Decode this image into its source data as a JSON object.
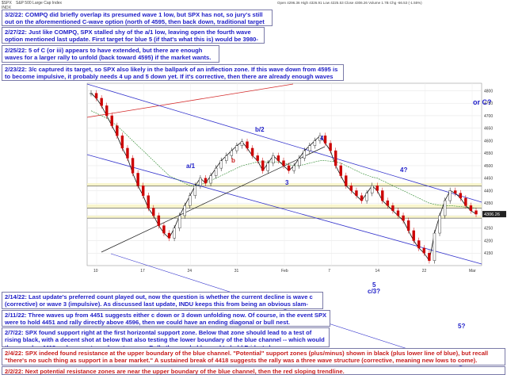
{
  "header": {
    "symbol": "$SPX",
    "name": "S&P 500 Large Cap Index",
    "exchange": "INDX",
    "ohlc": "Open 4296.36  High 4326.91  Low 4225.53  Close 4306.26  Volume 1.7B  Chg -66.53 (-1.55%)"
  },
  "notes": [
    {
      "id": "n1",
      "color": "blue",
      "text": "3/2/22:  COMPQ did briefly overlap its presumed wave 1 low, but SPX has not, so jury's still out on the aforementioned C-wave option (north of 4595, then back down, traditional target = 4717 plus/minus)."
    },
    {
      "id": "n2",
      "color": "blue",
      "text": "2/27/22:  Just like COMPQ, SPX stalled shy of the a/1 low, leaving open the fourth wave option mentioned last update.  First target for blue 5 (if that's what this is) would be 3980-4030.  Bulls need sustained trade over 4461."
    },
    {
      "id": "n3",
      "color": "blue",
      "text": "2/25/22:  5 of C (or iii) appears to have extended, but there are enough waves for a larger rally to unfold (back toward 4595) if the market wants."
    },
    {
      "id": "n4",
      "color": "blue",
      "text": "2/23/22:  3/c captured its target, so SPX also likely in the ballpark of an inflection zone.  If this wave down from 4595 is to become impulsive, it probably needs 4 up and 5 down yet.  If it's corrective, then there are already enough waves for it to bounce back up north of 4595 -- hence the inflection zone."
    },
    {
      "id": "n5",
      "color": "blue",
      "text": "2/14/22:  Last update's preferred count played out, now the question is whether the current decline is wave c (corrective) or wave 3 (impulsive).  As discussed last update, INDU keeps this from being an obvious slam-dunk for bears."
    },
    {
      "id": "n6",
      "color": "blue",
      "text": "2/11/22:  Three waves up from 4451 suggests either c down or 3 down unfolding now.  Of course, in the event SPX were to hold 4451 and rally directly above 4596, then we could have an ending diagonal or bull nest."
    },
    {
      "id": "n7",
      "color": "blue",
      "text": "2/7/22:  SPX found support right at the first horizontal support zone.  Below that zone should lead to a test of rising black, with a decent shot at below that also testing the lower boundary of the blue channel -- which would then overlap 4418 and suggest new lows to come.  Bulls thus probably need to hold Friday's low."
    },
    {
      "id": "n8",
      "color": "red",
      "text": "2/4/22:  SPX indeed found resistance at the upper boundary of the blue channel.  \"Potential\" support zones (plus/minus) shown in black (plus lower line of blue), but recall \"there's no such thing as support in a bear market.\"  A sustained break of 4418 suggests the rally was a three wave structure (corrective, meaning new lows to come)."
    },
    {
      "id": "n9",
      "color": "red",
      "text": "2/2/22:  Next potential resistance zones are near the upper boundary of the blue channel, then the red sloping trendline."
    }
  ],
  "wave_labels": [
    {
      "text": "or C?",
      "color": "#1d1dc8"
    },
    {
      "text": "b/2",
      "color": "#1d1dc8"
    },
    {
      "text": "a/1",
      "color": "#1d1dc8"
    },
    {
      "text": "b",
      "color": "#c81d1d"
    },
    {
      "text": "3",
      "color": "#1d1dc8"
    },
    {
      "text": "4",
      "color": "#1d1dc8"
    },
    {
      "text": "4?",
      "color": "#1d1dc8"
    },
    {
      "text": "5",
      "color": "#1d1dc8"
    },
    {
      "text": "c/3?",
      "color": "#1d1dc8"
    },
    {
      "text": "5?",
      "color": "#1d1dc8"
    }
  ],
  "chart_data": {
    "type": "line",
    "title": "$SPX S&P 500 Large Cap Index",
    "ylim": [
      4100,
      4830
    ],
    "y_ticks": [
      4150,
      4200,
      4250,
      4300,
      4350,
      4400,
      4450,
      4500,
      4550,
      4600,
      4650,
      4700,
      4750,
      4800
    ],
    "x_ticks": [
      "10",
      "17",
      "24",
      "31",
      "Feb",
      "7",
      "14",
      "22",
      "Mar"
    ],
    "price_tag": "4306.26",
    "grid": true,
    "series": [
      {
        "values": [
          4790,
          4770,
          4740,
          4700,
          4660,
          4620,
          4570,
          4530,
          4470,
          4420,
          4380,
          4330,
          4300,
          4260,
          4230,
          4210,
          4250,
          4300,
          4340,
          4380,
          4420,
          4450,
          4430,
          4460,
          4490,
          4520,
          4540,
          4560,
          4580,
          4596,
          4570,
          4540,
          4520,
          4480,
          4510,
          4540,
          4520,
          4500,
          4480,
          4500,
          4530,
          4560,
          4580,
          4600,
          4620,
          4590,
          4560,
          4500,
          4460,
          4420,
          4400,
          4380,
          4360,
          4390,
          4420,
          4400,
          4360,
          4340,
          4320,
          4300,
          4280,
          4240,
          4200,
          4170,
          4150,
          4120,
          4230,
          4300,
          4360,
          4400,
          4390,
          4370,
          4340,
          4320,
          4306
        ]
      },
      {
        "name": "MA",
        "values": [
          4720,
          4710,
          4700,
          4690,
          4675,
          4660,
          4640,
          4620,
          4600,
          4580,
          4560,
          4540,
          4520,
          4500,
          4480,
          4460,
          4450,
          4440,
          4430,
          4420,
          4420,
          4425,
          4430,
          4440,
          4450,
          4460,
          4470,
          4480,
          4490,
          4500,
          4505,
          4510,
          4515,
          4515,
          4515,
          4515,
          4515,
          4510,
          4505,
          4500,
          4500,
          4505,
          4510,
          4515,
          4520,
          4520,
          4518,
          4515,
          4510,
          4500,
          4490,
          4480,
          4470,
          4462,
          4455,
          4450,
          4440,
          4430,
          4420,
          4410,
          4400,
          4390,
          4380,
          4370,
          4360,
          4350,
          4345,
          4342,
          4340,
          4340,
          4338,
          4336,
          4334,
          4332,
          4330
        ]
      }
    ]
  }
}
